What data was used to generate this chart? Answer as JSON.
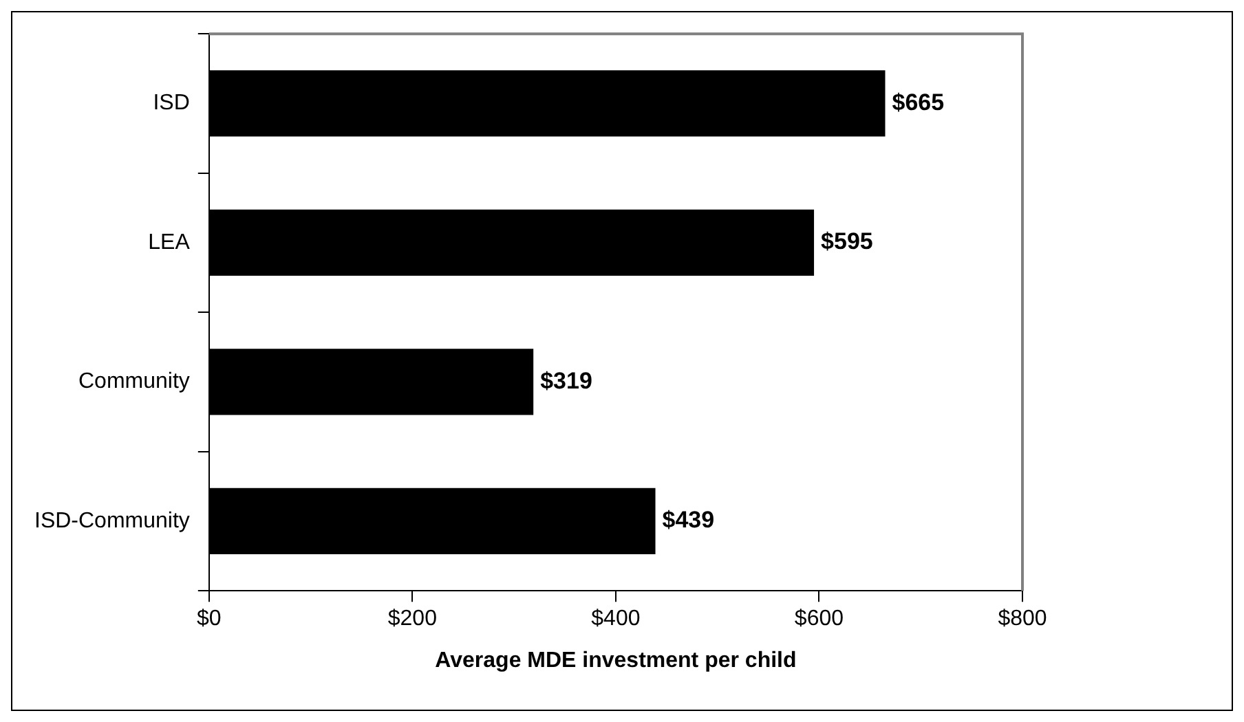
{
  "chart_data": {
    "type": "bar",
    "orientation": "horizontal",
    "xlabel": "Average MDE investment per child",
    "categories": [
      "ISD",
      "LEA",
      "Community",
      "ISD-Community"
    ],
    "values": [
      665,
      595,
      319,
      439
    ],
    "color": "#000000",
    "value_labels": [
      "$665",
      "$595",
      "$319",
      "$439"
    ],
    "xlim": [
      0,
      800
    ],
    "xticks": [
      {
        "value": 0,
        "label": "$0"
      },
      {
        "value": 200,
        "label": "$200"
      },
      {
        "value": 400,
        "label": "$400"
      },
      {
        "value": 600,
        "label": "$600"
      },
      {
        "value": 800,
        "label": "$800"
      }
    ],
    "grid": false,
    "legend": false
  }
}
